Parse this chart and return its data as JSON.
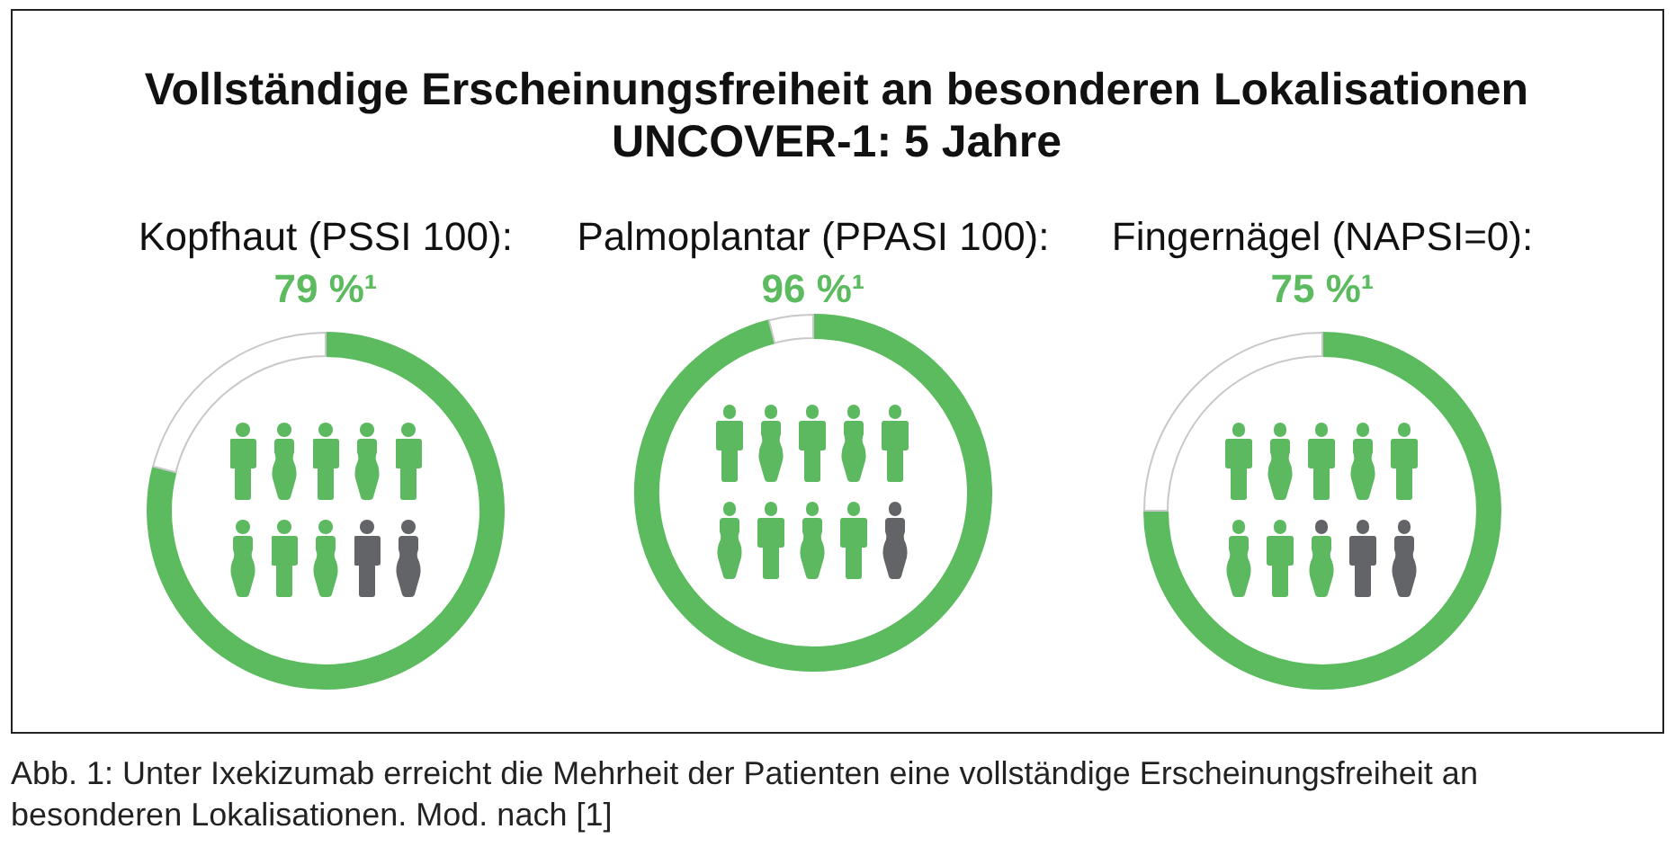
{
  "chart_data": [
    {
      "type": "other",
      "title": "Vollständige Erscheinungsfreiheit an besonderen Lokalisationen",
      "subtitle": "UNCOVER-1: 5 Jahre",
      "annotations": [
        "Abb. 1: Unter Ixekizumab erreicht die Mehrheit der Patienten eine vollständige Erscheinungsfreiheit an besonderen Lokalisationen. Mod. nach [1]"
      ]
    },
    {
      "type": "donut",
      "title": "Kopfhaut (PSSI 100):",
      "categories": [
        null,
        null
      ],
      "values": [
        79,
        21
      ],
      "colors": [
        "#5bbb5e",
        "#ffffff"
      ],
      "value_labels": [
        "79 %¹",
        null
      ]
    },
    {
      "type": "donut",
      "title": "Palmoplantar (PPASI 100):",
      "categories": [
        null,
        null
      ],
      "values": [
        96,
        4
      ],
      "colors": [
        "#5bbb5e",
        "#ffffff"
      ],
      "value_labels": [
        "96 %¹",
        null
      ]
    },
    {
      "type": "donut",
      "title": "Fingernägel (NAPSI=0):",
      "categories": [
        null,
        null
      ],
      "values": [
        75,
        25
      ],
      "colors": [
        "#5bbb5e",
        "#ffffff"
      ],
      "value_labels": [
        "75 %¹",
        null
      ]
    }
  ]
}
